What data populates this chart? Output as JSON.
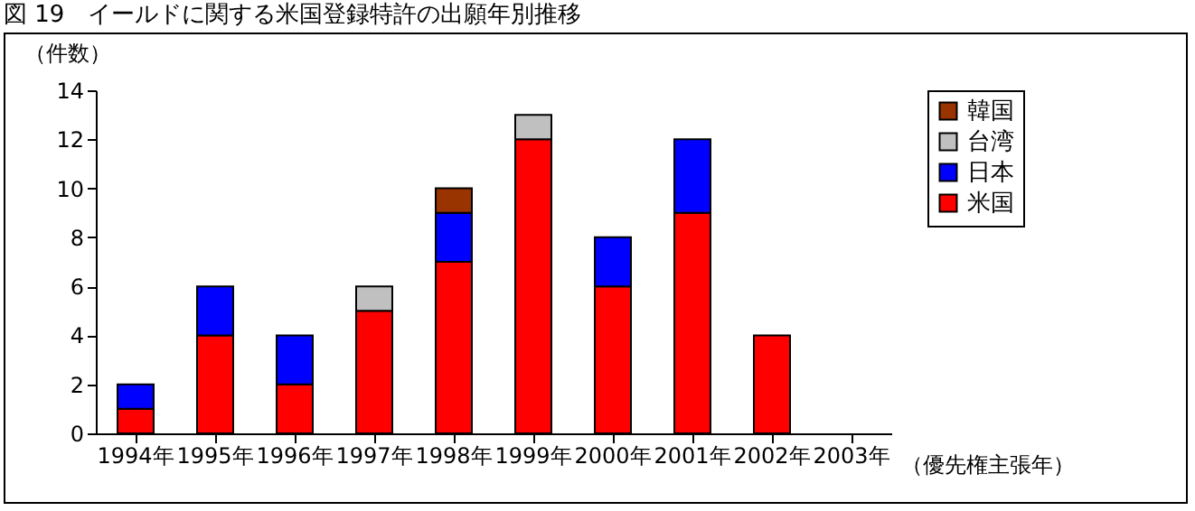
{
  "chart_data": {
    "type": "bar",
    "title": "図 19　イールドに関する米国登録特許の出願年別推移",
    "ylabel": "（件数）",
    "xlabel": "（優先権主張年）",
    "categories": [
      "1994年",
      "1995年",
      "1996年",
      "1997年",
      "1998年",
      "1999年",
      "2000年",
      "2001年",
      "2002年",
      "2003年"
    ],
    "stacked": true,
    "ylim": [
      0,
      14
    ],
    "yticks": [
      0,
      2,
      4,
      6,
      8,
      10,
      12,
      14
    ],
    "grid": false,
    "legend": "right",
    "series": [
      {
        "name": "米国",
        "color": "#ff0000",
        "values": [
          1,
          4,
          2,
          5,
          7,
          12,
          6,
          9,
          4,
          null
        ]
      },
      {
        "name": "日本",
        "color": "#0000ff",
        "values": [
          1,
          2,
          2,
          null,
          2,
          null,
          2,
          3,
          null,
          null
        ]
      },
      {
        "name": "台湾",
        "color": "#c0c0c0",
        "values": [
          null,
          null,
          null,
          1,
          null,
          1,
          null,
          null,
          null,
          null
        ]
      },
      {
        "name": "韓国",
        "color": "#993300",
        "values": [
          null,
          null,
          null,
          null,
          1,
          null,
          null,
          null,
          null,
          null
        ]
      }
    ]
  }
}
